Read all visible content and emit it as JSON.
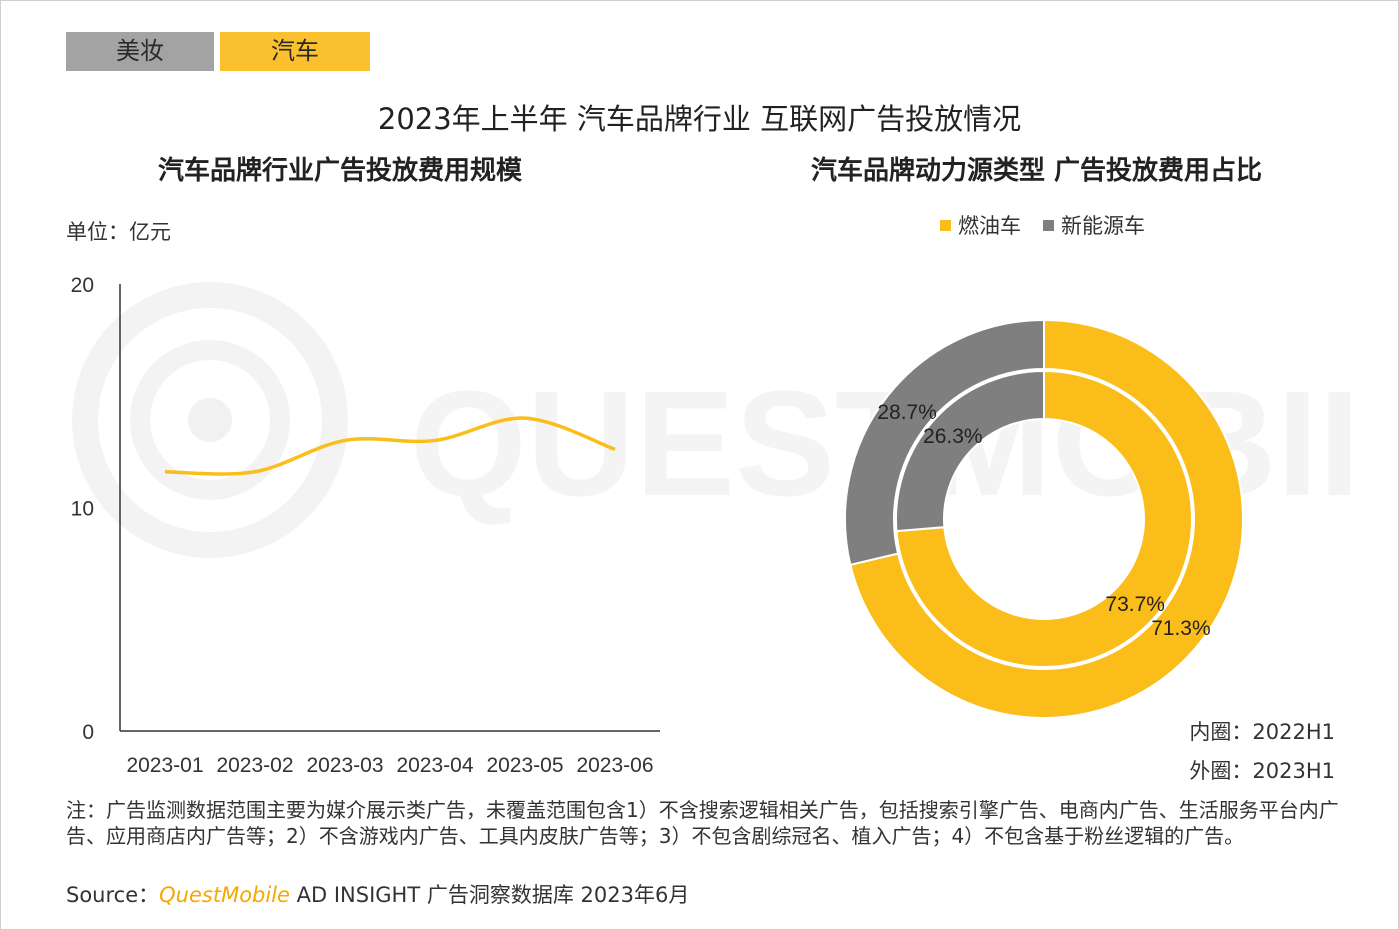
{
  "tabs": [
    {
      "label": "美妆",
      "active": false
    },
    {
      "label": "汽车",
      "active": true
    }
  ],
  "main_title": "2023年上半年 汽车品牌行业 互联网广告投放情况",
  "watermark": "QUESTMOBILE",
  "left_chart": {
    "title": "汽车品牌行业广告投放费用规模",
    "unit": "单位：亿元"
  },
  "right_chart": {
    "title": "汽车品牌动力源类型 广告投放费用占比",
    "legend": [
      "燃油车",
      "新能源车"
    ],
    "inner_note": "内圈：2022H1",
    "outer_note": "外圈：2023H1"
  },
  "notes": "注：广告监测数据范围主要为媒介展示类广告，未覆盖范围包含1）不含搜索逻辑相关广告，包括搜索引擎广告、电商内广告、生活服务平台内广告、应用商店内广告等；2）不含游戏内广告、工具内皮肤广告等；3）不包含剧综冠名、植入广告；4）不包含基于粉丝逻辑的广告。",
  "source": {
    "prefix": "Source：",
    "brand": "QuestMobile",
    "suffix": " AD INSIGHT 广告洞察数据库 2023年6月"
  },
  "colors": {
    "fuel": "#fbbd19",
    "nev": "#7f7f7f",
    "line": "#fbbd19",
    "tab_active": "#fbc02d",
    "tab_inactive": "#a3a3a3"
  },
  "chart_data": [
    {
      "type": "line",
      "title": "汽车品牌行业广告投放费用规模",
      "x": [
        "2023-01",
        "2023-02",
        "2023-03",
        "2023-04",
        "2023-05",
        "2023-06"
      ],
      "series": [
        {
          "values": [
            11.6,
            11.6,
            13.0,
            13.0,
            14.0,
            12.6
          ]
        }
      ],
      "yticks": [
        0,
        10,
        20
      ],
      "ylim": [
        0,
        20
      ],
      "ylabel": "单位：亿元",
      "grid": false,
      "smooth": true
    },
    {
      "type": "pie",
      "title": "汽车品牌动力源类型 广告投放费用占比",
      "donut": true,
      "categories": [
        "燃油车",
        "新能源车"
      ],
      "rings": [
        {
          "ring": "outer",
          "period": "2023H1",
          "values": [
            71.3,
            28.7
          ],
          "labels": [
            "71.3%",
            "28.7%"
          ]
        },
        {
          "ring": "inner",
          "period": "2022H1",
          "values": [
            73.7,
            26.3
          ],
          "labels": [
            "73.7%",
            "26.3%"
          ]
        }
      ],
      "legend": "top"
    }
  ]
}
